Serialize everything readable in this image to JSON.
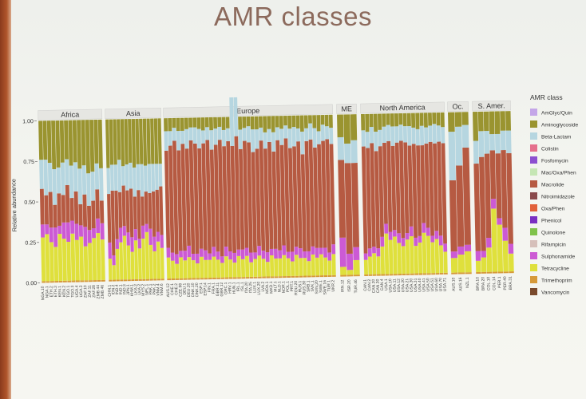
{
  "slide": {
    "title": "AMR classes"
  },
  "chart_data": {
    "type": "bar",
    "stacked": true,
    "ylabel": "Relative abundance",
    "ylim": [
      0,
      1
    ],
    "yticks": [
      "0.00",
      "0.25",
      "0.50",
      "0.75",
      "1.00"
    ],
    "legend": {
      "title": "AMR class",
      "placement": "right",
      "items": [
        {
          "name": "AmGlyc/Quin",
          "color": "#c4a6e8"
        },
        {
          "name": "Aminoglycoside",
          "color": "#9a9430"
        },
        {
          "name": "Beta-Lactam",
          "color": "#b6d6e0"
        },
        {
          "name": "Colistin",
          "color": "#e56f8c"
        },
        {
          "name": "Fosfomycin",
          "color": "#8c4fd0"
        },
        {
          "name": "Mac/Oxa/Phen",
          "color": "#c5e6b4"
        },
        {
          "name": "Macrolide",
          "color": "#b65a42"
        },
        {
          "name": "Nitroimidazole",
          "color": "#8a4a4c"
        },
        {
          "name": "Oxa/Phen",
          "color": "#e2603a"
        },
        {
          "name": "Phenicol",
          "color": "#7a2fc2"
        },
        {
          "name": "Quinolone",
          "color": "#7fc24a"
        },
        {
          "name": "Rifampicin",
          "color": "#d6c0ba"
        },
        {
          "name": "Sulphonamide",
          "color": "#cc5ad4"
        },
        {
          "name": "Tetracycline",
          "color": "#dfe03c"
        },
        {
          "name": "Trimethoprim",
          "color": "#d69a3a"
        },
        {
          "name": "Vancomycin",
          "color": "#7a4a2c"
        }
      ]
    },
    "panels": [
      {
        "name": "Africa",
        "samples": [
          "NGA.10",
          "NGA.1",
          "ETH.2",
          "ETH.3",
          "KEN.1",
          "KEN.2",
          "TGO.1",
          "TGO.3",
          "UGA.4",
          "UGA.3",
          "ZAF.10",
          "ZAF.11",
          "ZAF.28",
          "ZMB.44",
          "ZMB.46"
        ],
        "tetracycline": [
          0.28,
          0.3,
          0.25,
          0.22,
          0.3,
          0.27,
          0.25,
          0.3,
          0.26,
          0.28,
          0.22,
          0.24,
          0.27,
          0.3,
          0.26
        ],
        "sulphonamide": [
          0.08,
          0.06,
          0.09,
          0.12,
          0.05,
          0.1,
          0.12,
          0.08,
          0.1,
          0.07,
          0.12,
          0.08,
          0.06,
          0.09,
          0.1
        ],
        "macrolide": [
          0.22,
          0.18,
          0.22,
          0.14,
          0.2,
          0.17,
          0.23,
          0.14,
          0.2,
          0.13,
          0.2,
          0.15,
          0.17,
          0.18,
          0.14
        ],
        "betalactam": [
          0.18,
          0.22,
          0.18,
          0.22,
          0.16,
          0.2,
          0.16,
          0.2,
          0.18,
          0.22,
          0.18,
          0.2,
          0.18,
          0.16,
          0.2
        ]
      },
      {
        "name": "Asia",
        "samples": [
          "CHN.1",
          "IDN.2",
          "IND.4",
          "IND.1",
          "IND.3",
          "JPN.1",
          "KHM.1",
          "LKA.2",
          "LKA.2",
          "MYS.2",
          "NPL.1",
          "PAK.1",
          "PAK.2",
          "VNM.4",
          "VNM.6"
        ],
        "tetracycline": [
          0.14,
          0.1,
          0.2,
          0.24,
          0.28,
          0.22,
          0.18,
          0.25,
          0.2,
          0.26,
          0.3,
          0.22,
          0.18,
          0.24,
          0.2
        ],
        "sulphonamide": [
          0.1,
          0.06,
          0.06,
          0.09,
          0.06,
          0.08,
          0.09,
          0.07,
          0.06,
          0.08,
          0.05,
          0.1,
          0.09,
          0.06,
          0.08
        ],
        "macrolide": [
          0.3,
          0.4,
          0.3,
          0.22,
          0.25,
          0.26,
          0.3,
          0.2,
          0.3,
          0.18,
          0.2,
          0.22,
          0.28,
          0.26,
          0.3
        ],
        "betalactam": [
          0.16,
          0.16,
          0.16,
          0.2,
          0.12,
          0.16,
          0.16,
          0.18,
          0.16,
          0.2,
          0.16,
          0.18,
          0.17,
          0.16,
          0.14
        ]
      },
      {
        "name": "Europe",
        "samples": [
          "AUS.12",
          "CHE.1",
          "CHE.2",
          "CZE.98",
          "DEU.1",
          "DEU.20",
          "DNK.10",
          "DNK.20",
          "ESP.1",
          "ESP.14",
          "FIN.1",
          "FRA.1",
          "GBR.11",
          "GBR.12",
          "GRC.1",
          "HRV.1",
          "HUN.1",
          "IRL.1",
          "ISL.1",
          "ITA.20",
          "ITA.25",
          "LUX.1",
          "LUX.20",
          "LVA.2",
          "MDA.1",
          "MKD.1",
          "MLT.1",
          "NLD.1",
          "NOR.1",
          "POL.1",
          "PRT.1",
          "ROU.20",
          "RUS.1",
          "RUS.30",
          "SRB.1",
          "SVK.1",
          "SVN.20",
          "SWE.1",
          "SWE.16",
          "TUR.1",
          "UKR.2"
        ],
        "tetracycline": [
          0.14,
          0.12,
          0.1,
          0.14,
          0.12,
          0.14,
          0.12,
          0.1,
          0.14,
          0.12,
          0.12,
          0.14,
          0.12,
          0.1,
          0.14,
          0.12,
          0.1,
          0.14,
          0.12,
          0.14,
          0.1,
          0.12,
          0.14,
          0.12,
          0.1,
          0.14,
          0.12,
          0.12,
          0.14,
          0.12,
          0.1,
          0.14,
          0.12,
          0.12,
          0.1,
          0.14,
          0.12,
          0.14,
          0.12,
          0.1,
          0.14
        ],
        "sulphonamide": [
          0.06,
          0.05,
          0.06,
          0.04,
          0.06,
          0.07,
          0.04,
          0.06,
          0.05,
          0.06,
          0.04,
          0.06,
          0.05,
          0.04,
          0.06,
          0.05,
          0.06,
          0.04,
          0.06,
          0.05,
          0.06,
          0.04,
          0.06,
          0.05,
          0.06,
          0.04,
          0.06,
          0.05,
          0.06,
          0.04,
          0.06,
          0.05,
          0.06,
          0.04,
          0.06,
          0.05,
          0.06,
          0.04,
          0.06,
          0.05,
          0.06
        ],
        "macrolide": [
          0.6,
          0.66,
          0.7,
          0.62,
          0.66,
          0.6,
          0.7,
          0.68,
          0.62,
          0.66,
          0.7,
          0.6,
          0.66,
          0.72,
          0.62,
          0.68,
          0.66,
          0.7,
          0.62,
          0.66,
          0.68,
          0.62,
          0.6,
          0.68,
          0.64,
          0.66,
          0.6,
          0.68,
          0.62,
          0.7,
          0.64,
          0.62,
          0.66,
          0.6,
          0.68,
          0.66,
          0.62,
          0.64,
          0.66,
          0.7,
          0.62
        ],
        "betalactam": [
          0.12,
          0.09,
          0.08,
          0.12,
          0.08,
          0.12,
          0.08,
          0.1,
          0.12,
          0.08,
          0.08,
          0.12,
          0.1,
          0.08,
          0.1,
          0.08,
          0.3,
          0.24,
          0.12,
          0.08,
          0.1,
          0.14,
          0.12,
          0.08,
          0.1,
          0.08,
          0.12,
          0.08,
          0.1,
          0.08,
          0.12,
          0.12,
          0.08,
          0.14,
          0.08,
          0.1,
          0.12,
          0.08,
          0.1,
          0.08,
          0.1
        ]
      },
      {
        "name": "ME",
        "samples": [
          "IRN.12",
          "ISR.20",
          "TUR.46"
        ],
        "tetracycline": [
          0.06,
          0.04,
          0.1
        ],
        "sulphonamide": [
          0.18,
          0.1,
          0.08
        ],
        "macrolide": [
          0.48,
          0.56,
          0.52
        ],
        "betalactam": [
          0.14,
          0.12,
          0.14
        ]
      },
      {
        "name": "North America",
        "samples": [
          "CAN.1",
          "CAN.2",
          "CAN.20",
          "CAN.30",
          "CAN.4",
          "USA.1",
          "USA.10",
          "USA.11",
          "USA.12",
          "USA.20",
          "USA.21",
          "USA.30",
          "USA.31",
          "USA.40",
          "USA.41",
          "USA.50",
          "USA.51",
          "USA.60",
          "USA.70",
          "USA.71"
        ],
        "tetracycline": [
          0.1,
          0.12,
          0.14,
          0.12,
          0.18,
          0.26,
          0.22,
          0.24,
          0.2,
          0.18,
          0.22,
          0.24,
          0.18,
          0.2,
          0.26,
          0.24,
          0.2,
          0.22,
          0.18,
          0.14
        ],
        "sulphonamide": [
          0.04,
          0.05,
          0.04,
          0.05,
          0.06,
          0.06,
          0.05,
          0.04,
          0.06,
          0.05,
          0.04,
          0.06,
          0.05,
          0.04,
          0.06,
          0.05,
          0.04,
          0.05,
          0.06,
          0.05
        ],
        "macrolide": [
          0.66,
          0.62,
          0.64,
          0.6,
          0.56,
          0.5,
          0.56,
          0.52,
          0.56,
          0.6,
          0.56,
          0.5,
          0.58,
          0.56,
          0.48,
          0.52,
          0.58,
          0.54,
          0.58,
          0.62
        ],
        "betalactam": [
          0.1,
          0.1,
          0.1,
          0.12,
          0.1,
          0.1,
          0.1,
          0.12,
          0.1,
          0.1,
          0.1,
          0.12,
          0.1,
          0.1,
          0.12,
          0.1,
          0.1,
          0.12,
          0.1,
          0.1
        ]
      },
      {
        "name": "Oc.",
        "samples": [
          "AUS.10",
          "AUS.16",
          "NZL.1"
        ],
        "tetracycline": [
          0.1,
          0.12,
          0.14
        ],
        "sulphonamide": [
          0.04,
          0.05,
          0.04
        ],
        "macrolide": [
          0.44,
          0.5,
          0.6
        ],
        "betalactam": [
          0.3,
          0.24,
          0.14
        ]
      },
      {
        "name": "S. Amer.",
        "samples": [
          "BRA.10",
          "BRA.20",
          "COL.10",
          "COL.14",
          "PER.1",
          "PER.40",
          "BRA.31"
        ],
        "tetracycline": [
          0.08,
          0.1,
          0.16,
          0.4,
          0.3,
          0.2,
          0.12
        ],
        "sulphonamide": [
          0.06,
          0.04,
          0.06,
          0.06,
          0.04,
          0.08,
          0.06
        ],
        "macrolide": [
          0.54,
          0.58,
          0.52,
          0.3,
          0.4,
          0.48,
          0.56
        ],
        "betalactam": [
          0.14,
          0.16,
          0.14,
          0.1,
          0.12,
          0.12,
          0.14
        ]
      }
    ]
  }
}
